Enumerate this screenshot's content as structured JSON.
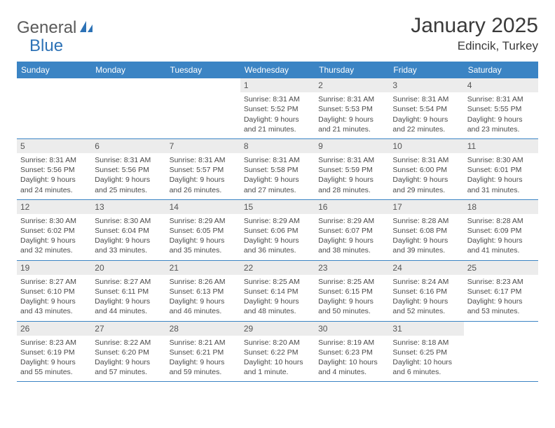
{
  "brand": {
    "name_part1": "General",
    "name_part2": "Blue",
    "colors": {
      "gray": "#5a5a5a",
      "blue": "#2d72b6"
    }
  },
  "header": {
    "title": "January 2025",
    "location": "Edincik, Turkey"
  },
  "styling": {
    "header_bg": "#3b84c4",
    "header_text": "#ffffff",
    "daynum_bg": "#ececec",
    "border_color": "#3b84c4",
    "body_text": "#4a4a4a",
    "page_bg": "#ffffff",
    "title_fontsize": 30,
    "location_fontsize": 17,
    "weekday_fontsize": 12,
    "cell_fontsize": 10.5
  },
  "weekdays": [
    "Sunday",
    "Monday",
    "Tuesday",
    "Wednesday",
    "Thursday",
    "Friday",
    "Saturday"
  ],
  "weeks": [
    [
      {
        "n": "",
        "rise": "",
        "set": "",
        "day1": "",
        "day2": "",
        "empty": true
      },
      {
        "n": "",
        "rise": "",
        "set": "",
        "day1": "",
        "day2": "",
        "empty": true
      },
      {
        "n": "",
        "rise": "",
        "set": "",
        "day1": "",
        "day2": "",
        "empty": true
      },
      {
        "n": "1",
        "rise": "Sunrise: 8:31 AM",
        "set": "Sunset: 5:52 PM",
        "day1": "Daylight: 9 hours",
        "day2": "and 21 minutes."
      },
      {
        "n": "2",
        "rise": "Sunrise: 8:31 AM",
        "set": "Sunset: 5:53 PM",
        "day1": "Daylight: 9 hours",
        "day2": "and 21 minutes."
      },
      {
        "n": "3",
        "rise": "Sunrise: 8:31 AM",
        "set": "Sunset: 5:54 PM",
        "day1": "Daylight: 9 hours",
        "day2": "and 22 minutes."
      },
      {
        "n": "4",
        "rise": "Sunrise: 8:31 AM",
        "set": "Sunset: 5:55 PM",
        "day1": "Daylight: 9 hours",
        "day2": "and 23 minutes."
      }
    ],
    [
      {
        "n": "5",
        "rise": "Sunrise: 8:31 AM",
        "set": "Sunset: 5:56 PM",
        "day1": "Daylight: 9 hours",
        "day2": "and 24 minutes."
      },
      {
        "n": "6",
        "rise": "Sunrise: 8:31 AM",
        "set": "Sunset: 5:56 PM",
        "day1": "Daylight: 9 hours",
        "day2": "and 25 minutes."
      },
      {
        "n": "7",
        "rise": "Sunrise: 8:31 AM",
        "set": "Sunset: 5:57 PM",
        "day1": "Daylight: 9 hours",
        "day2": "and 26 minutes."
      },
      {
        "n": "8",
        "rise": "Sunrise: 8:31 AM",
        "set": "Sunset: 5:58 PM",
        "day1": "Daylight: 9 hours",
        "day2": "and 27 minutes."
      },
      {
        "n": "9",
        "rise": "Sunrise: 8:31 AM",
        "set": "Sunset: 5:59 PM",
        "day1": "Daylight: 9 hours",
        "day2": "and 28 minutes."
      },
      {
        "n": "10",
        "rise": "Sunrise: 8:31 AM",
        "set": "Sunset: 6:00 PM",
        "day1": "Daylight: 9 hours",
        "day2": "and 29 minutes."
      },
      {
        "n": "11",
        "rise": "Sunrise: 8:30 AM",
        "set": "Sunset: 6:01 PM",
        "day1": "Daylight: 9 hours",
        "day2": "and 31 minutes."
      }
    ],
    [
      {
        "n": "12",
        "rise": "Sunrise: 8:30 AM",
        "set": "Sunset: 6:02 PM",
        "day1": "Daylight: 9 hours",
        "day2": "and 32 minutes."
      },
      {
        "n": "13",
        "rise": "Sunrise: 8:30 AM",
        "set": "Sunset: 6:04 PM",
        "day1": "Daylight: 9 hours",
        "day2": "and 33 minutes."
      },
      {
        "n": "14",
        "rise": "Sunrise: 8:29 AM",
        "set": "Sunset: 6:05 PM",
        "day1": "Daylight: 9 hours",
        "day2": "and 35 minutes."
      },
      {
        "n": "15",
        "rise": "Sunrise: 8:29 AM",
        "set": "Sunset: 6:06 PM",
        "day1": "Daylight: 9 hours",
        "day2": "and 36 minutes."
      },
      {
        "n": "16",
        "rise": "Sunrise: 8:29 AM",
        "set": "Sunset: 6:07 PM",
        "day1": "Daylight: 9 hours",
        "day2": "and 38 minutes."
      },
      {
        "n": "17",
        "rise": "Sunrise: 8:28 AM",
        "set": "Sunset: 6:08 PM",
        "day1": "Daylight: 9 hours",
        "day2": "and 39 minutes."
      },
      {
        "n": "18",
        "rise": "Sunrise: 8:28 AM",
        "set": "Sunset: 6:09 PM",
        "day1": "Daylight: 9 hours",
        "day2": "and 41 minutes."
      }
    ],
    [
      {
        "n": "19",
        "rise": "Sunrise: 8:27 AM",
        "set": "Sunset: 6:10 PM",
        "day1": "Daylight: 9 hours",
        "day2": "and 43 minutes."
      },
      {
        "n": "20",
        "rise": "Sunrise: 8:27 AM",
        "set": "Sunset: 6:11 PM",
        "day1": "Daylight: 9 hours",
        "day2": "and 44 minutes."
      },
      {
        "n": "21",
        "rise": "Sunrise: 8:26 AM",
        "set": "Sunset: 6:13 PM",
        "day1": "Daylight: 9 hours",
        "day2": "and 46 minutes."
      },
      {
        "n": "22",
        "rise": "Sunrise: 8:25 AM",
        "set": "Sunset: 6:14 PM",
        "day1": "Daylight: 9 hours",
        "day2": "and 48 minutes."
      },
      {
        "n": "23",
        "rise": "Sunrise: 8:25 AM",
        "set": "Sunset: 6:15 PM",
        "day1": "Daylight: 9 hours",
        "day2": "and 50 minutes."
      },
      {
        "n": "24",
        "rise": "Sunrise: 8:24 AM",
        "set": "Sunset: 6:16 PM",
        "day1": "Daylight: 9 hours",
        "day2": "and 52 minutes."
      },
      {
        "n": "25",
        "rise": "Sunrise: 8:23 AM",
        "set": "Sunset: 6:17 PM",
        "day1": "Daylight: 9 hours",
        "day2": "and 53 minutes."
      }
    ],
    [
      {
        "n": "26",
        "rise": "Sunrise: 8:23 AM",
        "set": "Sunset: 6:19 PM",
        "day1": "Daylight: 9 hours",
        "day2": "and 55 minutes."
      },
      {
        "n": "27",
        "rise": "Sunrise: 8:22 AM",
        "set": "Sunset: 6:20 PM",
        "day1": "Daylight: 9 hours",
        "day2": "and 57 minutes."
      },
      {
        "n": "28",
        "rise": "Sunrise: 8:21 AM",
        "set": "Sunset: 6:21 PM",
        "day1": "Daylight: 9 hours",
        "day2": "and 59 minutes."
      },
      {
        "n": "29",
        "rise": "Sunrise: 8:20 AM",
        "set": "Sunset: 6:22 PM",
        "day1": "Daylight: 10 hours",
        "day2": "and 1 minute."
      },
      {
        "n": "30",
        "rise": "Sunrise: 8:19 AM",
        "set": "Sunset: 6:23 PM",
        "day1": "Daylight: 10 hours",
        "day2": "and 4 minutes."
      },
      {
        "n": "31",
        "rise": "Sunrise: 8:18 AM",
        "set": "Sunset: 6:25 PM",
        "day1": "Daylight: 10 hours",
        "day2": "and 6 minutes."
      },
      {
        "n": "",
        "rise": "",
        "set": "",
        "day1": "",
        "day2": "",
        "empty": true
      }
    ]
  ]
}
